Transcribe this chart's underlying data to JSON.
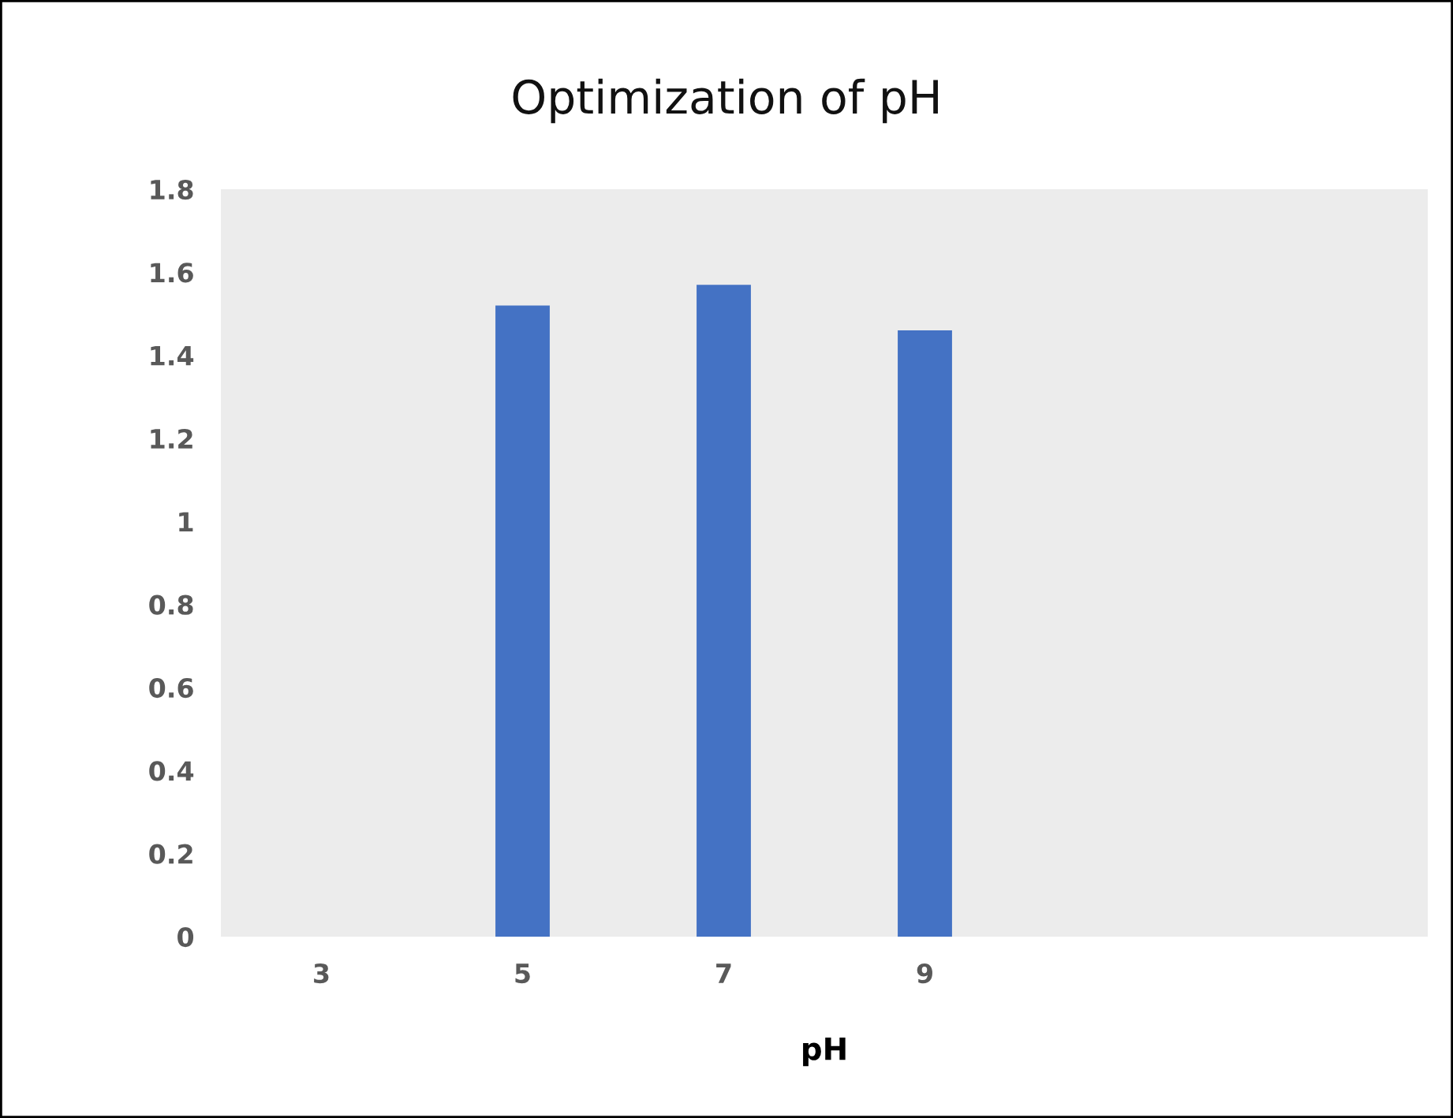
{
  "chart_data": {
    "type": "bar",
    "title": "Optimization of pH",
    "xlabel": "pH",
    "categories": [
      "3",
      "5",
      "7",
      "9",
      null,
      null
    ],
    "values": [
      null,
      1.52,
      1.57,
      1.46,
      null,
      null
    ],
    "color": "#4472c4",
    "ylim": [
      0,
      1.8
    ],
    "yticks": [
      0,
      0.2,
      0.4,
      0.6,
      0.8,
      1,
      1.2,
      1.4,
      1.6,
      1.8
    ],
    "grid": false
  }
}
